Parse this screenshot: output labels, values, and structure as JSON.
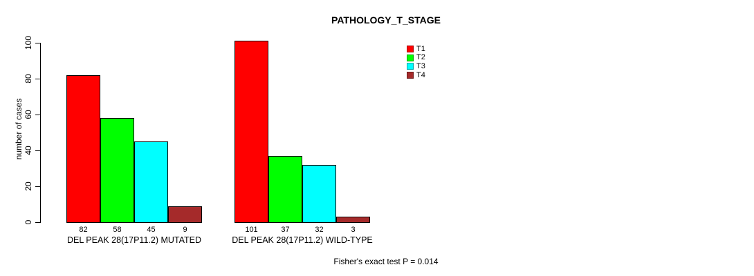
{
  "chart_data": {
    "type": "bar",
    "title": "PATHOLOGY_T_STAGE",
    "xlabel": "",
    "ylabel": "number of cases",
    "ylim": [
      0,
      100
    ],
    "yticks": [
      0,
      20,
      40,
      60,
      80,
      100
    ],
    "grid": false,
    "legend_position": "top-right",
    "categories": [
      "DEL PEAK 28(17P11.2) MUTATED",
      "DEL PEAK 28(17P11.2) WILD-TYPE"
    ],
    "series": [
      {
        "name": "T1",
        "color": "#FF0000",
        "values": [
          82,
          101
        ]
      },
      {
        "name": "T2",
        "color": "#00FF00",
        "values": [
          58,
          37
        ]
      },
      {
        "name": "T3",
        "color": "#00FFFF",
        "values": [
          45,
          32
        ]
      },
      {
        "name": "T4",
        "color": "#A52A2A",
        "values": [
          9,
          3
        ]
      }
    ],
    "bar_value_labels": [
      [
        82,
        58,
        45,
        9
      ],
      [
        101,
        37,
        32,
        3
      ]
    ],
    "annotation": "Fisher's exact test P = 0.014"
  }
}
